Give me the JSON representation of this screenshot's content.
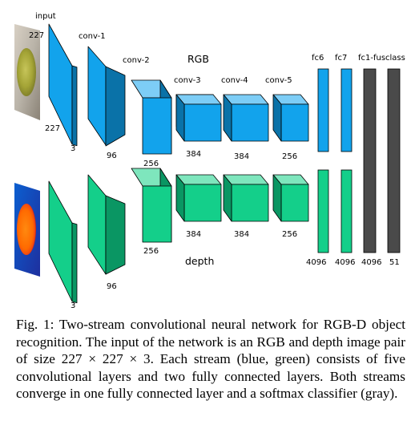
{
  "diagram": {
    "labels": {
      "input": "input",
      "conv1": "conv-1",
      "conv2": "conv-2",
      "conv3": "conv-3",
      "conv4": "conv-4",
      "conv5": "conv-5",
      "fc6": "fc6",
      "fc7": "fc7",
      "fc1fus": "fc1-fus",
      "class": "class"
    },
    "stream_rgb": "RGB",
    "stream_depth": "depth",
    "rgb_dims": {
      "input_h": "227",
      "input_w": "227",
      "input_c": "3",
      "conv1": "96",
      "conv2": "256",
      "conv3": "384",
      "conv4": "384",
      "conv5": "256"
    },
    "depth_dims": {
      "input_c": "3",
      "conv1": "96",
      "conv2": "256",
      "conv3": "384",
      "conv4": "384",
      "conv5": "256"
    },
    "fc_dims": {
      "fc6": "4096",
      "fc7": "4096",
      "fc1fus": "4096",
      "class": "51"
    },
    "colors": {
      "rgb_front": "#12a3ec",
      "rgb_top": "#7dcdf6",
      "rgb_side": "#0a72a8",
      "depth_front": "#14cf8a",
      "depth_top": "#7ee6bd",
      "depth_side": "#0a9663",
      "fusion": "#4a4a4a"
    }
  },
  "caption": "Fig. 1: Two-stream convolutional neural network for RGB-D object recognition. The input of the network is an RGB and depth image pair of size 227 × 227 × 3. Each stream (blue, green) consists of five convolutional layers and two fully connected layers. Both streams converge in one fully connected layer and a softmax classifier (gray)."
}
